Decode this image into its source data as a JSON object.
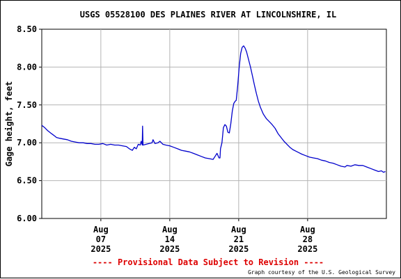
{
  "chart_data": {
    "type": "line",
    "title": "USGS 05528100 DES PLAINES RIVER AT LINCOLNSHIRE, IL",
    "ylabel": "Gage height, feet",
    "xlabel": "",
    "ylim": [
      6.0,
      8.5
    ],
    "yticks": [
      "6.00",
      "6.50",
      "7.00",
      "7.50",
      "8.00",
      "8.50"
    ],
    "xlim_days": [
      0,
      35
    ],
    "xticks": [
      {
        "day": 6.0,
        "label": [
          "Aug",
          "07",
          "2025"
        ]
      },
      {
        "day": 13.0,
        "label": [
          "Aug",
          "14",
          "2025"
        ]
      },
      {
        "day": 20.0,
        "label": [
          "Aug",
          "21",
          "2025"
        ]
      },
      {
        "day": 27.0,
        "label": [
          "Aug",
          "28",
          "2025"
        ]
      }
    ],
    "grid": true,
    "series": [
      {
        "name": "",
        "color": "#0000cc",
        "points": [
          [
            0.0,
            7.23
          ],
          [
            0.3,
            7.2
          ],
          [
            0.6,
            7.16
          ],
          [
            0.9,
            7.13
          ],
          [
            1.2,
            7.1
          ],
          [
            1.5,
            7.07
          ],
          [
            1.8,
            7.06
          ],
          [
            2.2,
            7.05
          ],
          [
            2.6,
            7.04
          ],
          [
            3.0,
            7.02
          ],
          [
            3.4,
            7.01
          ],
          [
            3.8,
            7.0
          ],
          [
            4.2,
            7.0
          ],
          [
            4.6,
            6.99
          ],
          [
            5.0,
            6.99
          ],
          [
            5.4,
            6.98
          ],
          [
            5.8,
            6.98
          ],
          [
            6.2,
            6.99
          ],
          [
            6.6,
            6.97
          ],
          [
            7.0,
            6.98
          ],
          [
            7.4,
            6.97
          ],
          [
            7.8,
            6.97
          ],
          [
            8.2,
            6.96
          ],
          [
            8.6,
            6.95
          ],
          [
            8.9,
            6.92
          ],
          [
            9.2,
            6.9
          ],
          [
            9.4,
            6.94
          ],
          [
            9.6,
            6.92
          ],
          [
            9.8,
            6.98
          ],
          [
            10.0,
            6.97
          ],
          [
            10.1,
            7.02
          ],
          [
            10.2,
            6.97
          ],
          [
            10.24,
            7.22
          ],
          [
            10.28,
            6.97
          ],
          [
            10.6,
            6.98
          ],
          [
            10.9,
            6.99
          ],
          [
            11.2,
            7.0
          ],
          [
            11.3,
            7.04
          ],
          [
            11.5,
            6.99
          ],
          [
            11.8,
            7.0
          ],
          [
            12.0,
            7.02
          ],
          [
            12.3,
            6.98
          ],
          [
            12.6,
            6.97
          ],
          [
            13.0,
            6.96
          ],
          [
            13.4,
            6.94
          ],
          [
            13.8,
            6.92
          ],
          [
            14.2,
            6.9
          ],
          [
            14.6,
            6.89
          ],
          [
            15.0,
            6.88
          ],
          [
            15.4,
            6.86
          ],
          [
            15.8,
            6.84
          ],
          [
            16.2,
            6.82
          ],
          [
            16.6,
            6.8
          ],
          [
            17.0,
            6.79
          ],
          [
            17.4,
            6.78
          ],
          [
            17.6,
            6.82
          ],
          [
            17.8,
            6.86
          ],
          [
            18.0,
            6.8
          ],
          [
            18.1,
            6.8
          ],
          [
            18.15,
            6.92
          ],
          [
            18.3,
            7.0
          ],
          [
            18.45,
            7.2
          ],
          [
            18.6,
            7.24
          ],
          [
            18.75,
            7.22
          ],
          [
            18.9,
            7.14
          ],
          [
            19.05,
            7.13
          ],
          [
            19.2,
            7.25
          ],
          [
            19.35,
            7.42
          ],
          [
            19.5,
            7.52
          ],
          [
            19.65,
            7.55
          ],
          [
            19.75,
            7.56
          ],
          [
            19.9,
            7.75
          ],
          [
            20.05,
            8.0
          ],
          [
            20.2,
            8.18
          ],
          [
            20.35,
            8.26
          ],
          [
            20.5,
            8.28
          ],
          [
            20.65,
            8.25
          ],
          [
            20.8,
            8.2
          ],
          [
            21.0,
            8.1
          ],
          [
            21.2,
            8.0
          ],
          [
            21.4,
            7.88
          ],
          [
            21.6,
            7.76
          ],
          [
            21.8,
            7.65
          ],
          [
            22.0,
            7.55
          ],
          [
            22.2,
            7.47
          ],
          [
            22.5,
            7.38
          ],
          [
            22.8,
            7.32
          ],
          [
            23.1,
            7.28
          ],
          [
            23.4,
            7.24
          ],
          [
            23.7,
            7.19
          ],
          [
            24.0,
            7.12
          ],
          [
            24.3,
            7.07
          ],
          [
            24.6,
            7.02
          ],
          [
            24.9,
            6.98
          ],
          [
            25.2,
            6.94
          ],
          [
            25.5,
            6.91
          ],
          [
            25.8,
            6.89
          ],
          [
            26.1,
            6.87
          ],
          [
            26.4,
            6.85
          ],
          [
            26.8,
            6.83
          ],
          [
            27.2,
            6.81
          ],
          [
            27.6,
            6.8
          ],
          [
            28.0,
            6.79
          ],
          [
            28.4,
            6.77
          ],
          [
            28.8,
            6.76
          ],
          [
            29.2,
            6.74
          ],
          [
            29.6,
            6.73
          ],
          [
            30.0,
            6.71
          ],
          [
            30.4,
            6.69
          ],
          [
            30.8,
            6.68
          ],
          [
            31.0,
            6.7
          ],
          [
            31.4,
            6.69
          ],
          [
            31.8,
            6.71
          ],
          [
            32.2,
            6.7
          ],
          [
            32.6,
            6.7
          ],
          [
            33.0,
            6.68
          ],
          [
            33.4,
            6.66
          ],
          [
            33.8,
            6.64
          ],
          [
            34.2,
            6.62
          ],
          [
            34.5,
            6.63
          ],
          [
            34.7,
            6.61
          ],
          [
            34.9,
            6.62
          ]
        ]
      }
    ],
    "annotations": {
      "provisional": "---- Provisional Data Subject to Revision ----",
      "courtesy": "Graph courtesy of the U.S. Geological Survey"
    }
  },
  "colors": {
    "line": "#0000cc",
    "grid": "#b4b4b4",
    "provisional": "#dd0000",
    "axes": "#000000"
  }
}
